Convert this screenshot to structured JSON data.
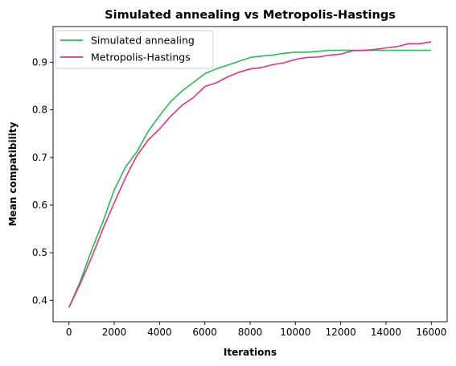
{
  "chart_data": {
    "type": "line",
    "title": "Simulated annealing vs Metropolis-Hastings",
    "xlabel": "Iterations",
    "ylabel": "Mean compatibility",
    "xlim": [
      -700,
      16700
    ],
    "ylim": [
      0.355,
      0.975
    ],
    "xticks": [
      0,
      2000,
      4000,
      6000,
      8000,
      10000,
      12000,
      14000,
      16000
    ],
    "xtick_labels": [
      "0",
      "2000",
      "4000",
      "6000",
      "8000",
      "10000",
      "12000",
      "14000",
      "16000"
    ],
    "yticks": [
      0.4,
      0.5,
      0.6,
      0.7,
      0.8,
      0.9
    ],
    "ytick_labels": [
      "0.4",
      "0.5",
      "0.6",
      "0.7",
      "0.8",
      "0.9"
    ],
    "grid": false,
    "legend_position": "top-left",
    "x": [
      0,
      500,
      1000,
      1500,
      2000,
      2500,
      3000,
      3500,
      4000,
      4500,
      5000,
      5500,
      6000,
      6500,
      7000,
      7500,
      8000,
      8500,
      9000,
      9500,
      10000,
      10500,
      11000,
      11500,
      12000,
      12500,
      13000,
      13500,
      14000,
      14500,
      15000,
      15500,
      16000
    ],
    "series": [
      {
        "name": "Simulated annealing",
        "color": "#22c050",
        "values": [
          0.385,
          0.44,
          0.505,
          0.565,
          0.632,
          0.68,
          0.712,
          0.755,
          0.788,
          0.818,
          0.84,
          0.858,
          0.876,
          0.886,
          0.894,
          0.902,
          0.91,
          0.913,
          0.915,
          0.919,
          0.921,
          0.921,
          0.923,
          0.925,
          0.925,
          0.925,
          0.925,
          0.925,
          0.925,
          0.925,
          0.925,
          0.925,
          0.925
        ]
      },
      {
        "name": "Metropolis-Hastings",
        "color": "#f0307f",
        "values": [
          0.385,
          0.435,
          0.49,
          0.55,
          0.605,
          0.658,
          0.704,
          0.737,
          0.76,
          0.787,
          0.81,
          0.826,
          0.849,
          0.857,
          0.869,
          0.879,
          0.886,
          0.889,
          0.895,
          0.899,
          0.906,
          0.91,
          0.911,
          0.915,
          0.917,
          0.924,
          0.925,
          0.927,
          0.93,
          0.933,
          0.939,
          0.939,
          0.943
        ]
      }
    ]
  }
}
